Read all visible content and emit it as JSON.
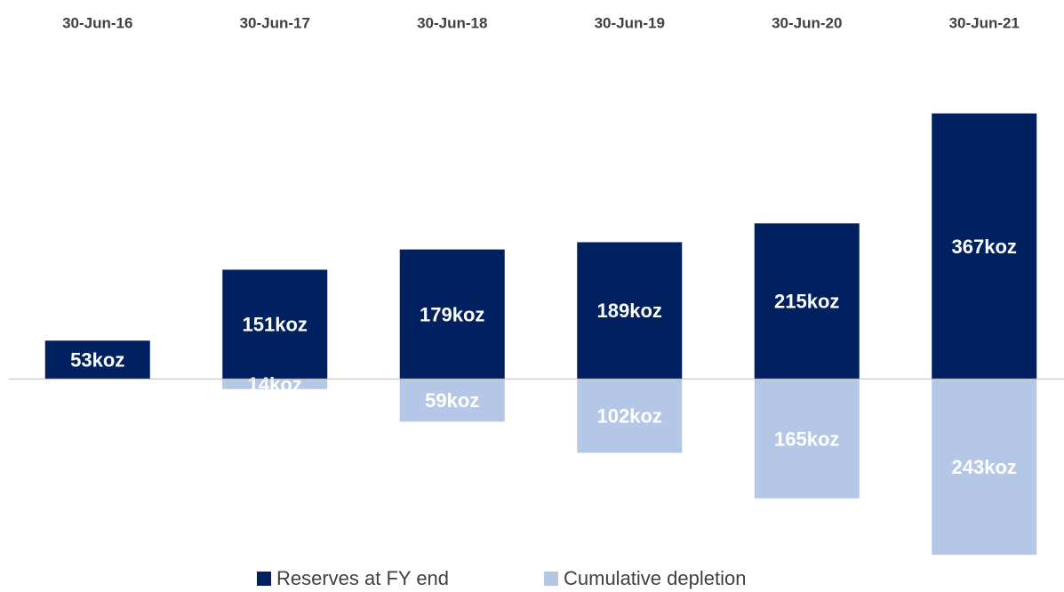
{
  "chart_data": {
    "type": "bar",
    "categories": [
      "30-Jun-16",
      "30-Jun-17",
      "30-Jun-18",
      "30-Jun-19",
      "30-Jun-20",
      "30-Jun-21"
    ],
    "series": [
      {
        "name": "Reserves at FY end",
        "color": "#002060",
        "values": [
          53,
          151,
          179,
          189,
          215,
          367
        ],
        "value_labels": [
          "53koz",
          "151koz",
          "179koz",
          "189koz",
          "215koz",
          "367koz"
        ]
      },
      {
        "name": "Cumulative depletion",
        "color": "#b4c7e7",
        "values": [
          null,
          -14,
          -59,
          -102,
          -165,
          -243
        ],
        "value_labels": [
          null,
          "14koz",
          "59koz",
          "102koz",
          "165koz",
          "243koz"
        ]
      }
    ],
    "ylim": [
      -260,
      380
    ]
  }
}
